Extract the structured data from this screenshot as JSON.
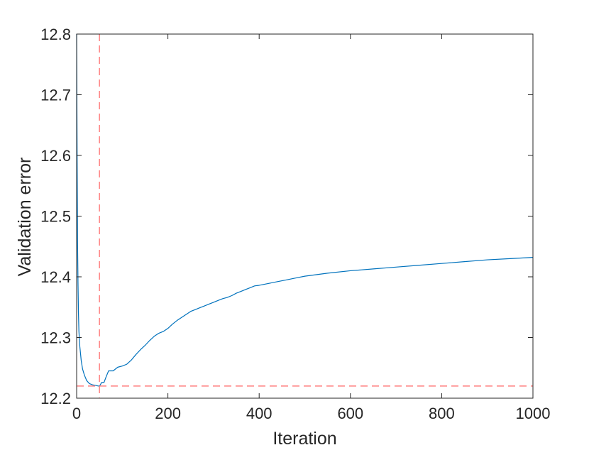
{
  "chart_data": {
    "type": "line",
    "title": "",
    "xlabel": "Iteration",
    "ylabel": "Validation error",
    "xlim": [
      0,
      1000
    ],
    "ylim": [
      12.2,
      12.8
    ],
    "xticks": [
      0,
      200,
      400,
      600,
      800,
      1000
    ],
    "xtick_labels": [
      "0",
      "200",
      "400",
      "600",
      "800",
      "1000"
    ],
    "yticks": [
      12.2,
      12.3,
      12.4,
      12.5,
      12.6,
      12.7,
      12.8
    ],
    "ytick_labels": [
      "12.2",
      "12.3",
      "12.4",
      "12.5",
      "12.6",
      "12.7",
      "12.8"
    ],
    "grid": false,
    "box": true,
    "series": [
      {
        "color": "#0072BD",
        "style": "solid",
        "x": [
          0,
          1,
          2,
          3,
          4,
          5,
          7,
          10,
          13,
          17,
          22,
          28,
          35,
          42,
          48,
          50,
          55,
          60,
          65,
          70,
          80,
          90,
          100,
          110,
          120,
          130,
          140,
          150,
          160,
          170,
          180,
          190,
          200,
          210,
          220,
          230,
          240,
          250,
          260,
          270,
          280,
          290,
          300,
          310,
          320,
          330,
          340,
          350,
          360,
          370,
          380,
          390,
          400,
          420,
          440,
          460,
          480,
          500,
          550,
          600,
          650,
          700,
          750,
          800,
          850,
          900,
          950,
          1000
        ],
        "y": [
          12.8,
          12.61,
          12.46,
          12.39,
          12.34,
          12.31,
          12.285,
          12.262,
          12.248,
          12.238,
          12.229,
          12.224,
          12.222,
          12.221,
          12.22,
          12.22,
          12.226,
          12.226,
          12.236,
          12.245,
          12.245,
          12.251,
          12.253,
          12.256,
          12.263,
          12.272,
          12.28,
          12.287,
          12.295,
          12.302,
          12.307,
          12.31,
          12.315,
          12.322,
          12.328,
          12.333,
          12.338,
          12.343,
          12.346,
          12.349,
          12.352,
          12.355,
          12.358,
          12.361,
          12.364,
          12.366,
          12.369,
          12.373,
          12.376,
          12.379,
          12.382,
          12.385,
          12.386,
          12.389,
          12.392,
          12.395,
          12.398,
          12.401,
          12.406,
          12.41,
          12.413,
          12.416,
          12.419,
          12.422,
          12.425,
          12.428,
          12.43,
          12.432
        ]
      }
    ],
    "reference_lines": [
      {
        "orientation": "vertical",
        "value": 50,
        "color": "#FF7F7F",
        "style": "dashed"
      },
      {
        "orientation": "horizontal",
        "value": 12.22,
        "color": "#FF7F7F",
        "style": "dashed"
      }
    ]
  }
}
